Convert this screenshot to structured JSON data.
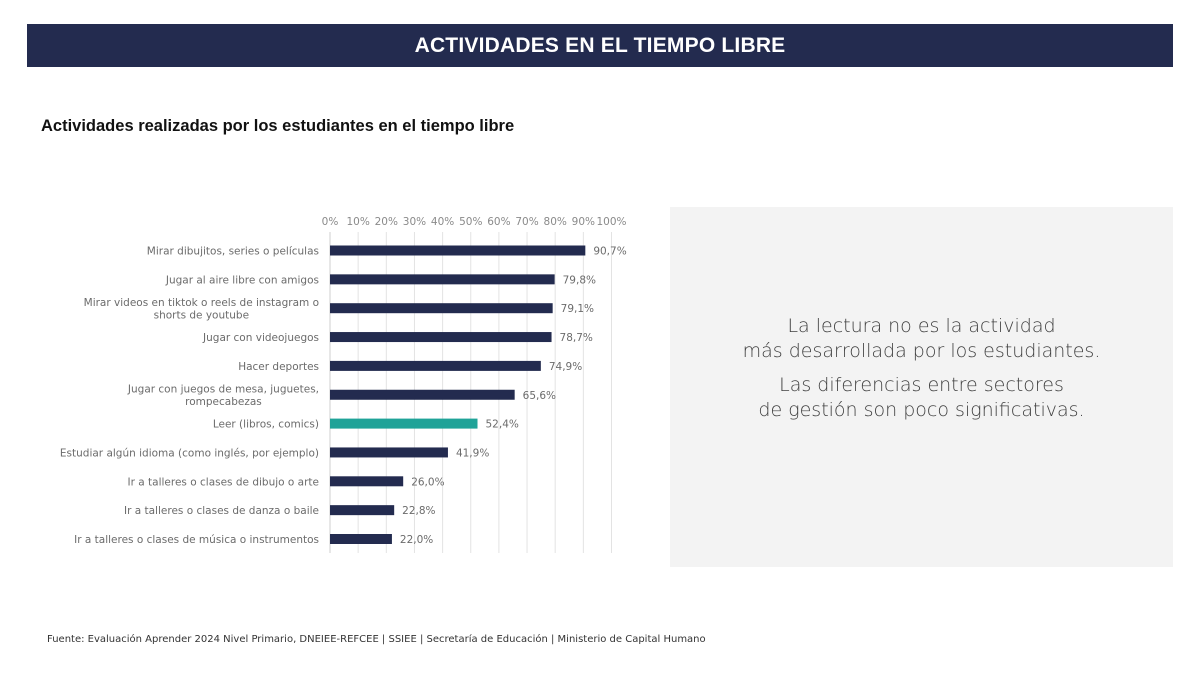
{
  "header": {
    "title": "ACTIVIDADES EN EL TIEMPO LIBRE"
  },
  "colors": {
    "header_bg": "#232b4f",
    "bar_default": "#232b4f",
    "bar_highlight": "#1fa398",
    "panel_bg": "#f3f3f3"
  },
  "chart_data": {
    "type": "bar",
    "orientation": "horizontal",
    "title": "Actividades realizadas por los estudiantes en el tiempo libre",
    "xlabel": "",
    "ylabel": "",
    "xlim": [
      0,
      100
    ],
    "x_ticks": [
      "0%",
      "10%",
      "20%",
      "30%",
      "40%",
      "50%",
      "60%",
      "70%",
      "80%",
      "90%",
      "100%"
    ],
    "x_axis_position": "top",
    "grid": true,
    "legend": "none",
    "categories": [
      "Mirar dibujitos, series o películas",
      "Jugar al aire libre con amigos",
      "Mirar videos en tiktok o reels de instagram  o\nshorts de youtube",
      "Jugar con videojuegos",
      "Hacer deportes",
      "Jugar con juegos de mesa, juguetes,\nrompecabezas",
      "Leer (libros, comics)",
      "Estudiar algún idioma (como inglés, por ejemplo)",
      "Ir a talleres o clases de dibujo o arte",
      "Ir a talleres o clases de danza o baile",
      "Ir a talleres o clases de música o instrumentos"
    ],
    "values": [
      90.7,
      79.8,
      79.1,
      78.7,
      74.9,
      65.6,
      52.4,
      41.9,
      26.0,
      22.8,
      22.0
    ],
    "value_labels": [
      "90,7%",
      "79,8%",
      "79,1%",
      "78,7%",
      "74,9%",
      "65,6%",
      "52,4%",
      "41,9%",
      "26,0%",
      "22,8%",
      "22,0%"
    ],
    "highlighted_category": "Leer (libros, comics)"
  },
  "insight": {
    "line1": "La lectura no es la actividad\nmás desarrollada por los estudiantes.",
    "line2": "Las diferencias entre sectores\nde gestión son poco significativas."
  },
  "source": "Fuente: Evaluación Aprender 2024 Nivel Primario, DNEIEE-REFCEE | SSIEE | Secretaría de Educación | Ministerio de Capital Humano"
}
